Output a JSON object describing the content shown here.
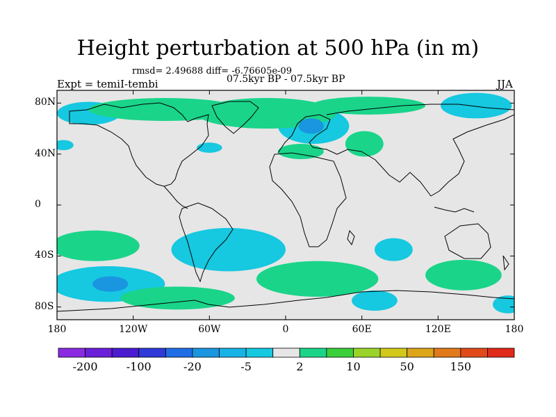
{
  "title": "Height perturbation at 500 hPa (in m)",
  "stats": "rmsd= 2.49688 diff= -6.76605e-09",
  "experiment": "Expt = temiI-tembi",
  "period": "07.5kyr BP - 07.5kyr BP",
  "season": "JJA",
  "map": {
    "lon_range": [
      -180,
      180
    ],
    "lat_range": [
      -90,
      90
    ],
    "y_ticks": [
      {
        "label": "80N",
        "lat": 80
      },
      {
        "label": "40N",
        "lat": 40
      },
      {
        "label": "0",
        "lat": 0
      },
      {
        "label": "40S",
        "lat": -40
      },
      {
        "label": "80S",
        "lat": -80
      }
    ],
    "x_ticks": [
      {
        "label": "180",
        "lon": -180
      },
      {
        "label": "120W",
        "lon": -120
      },
      {
        "label": "60W",
        "lon": -60
      },
      {
        "label": "0",
        "lon": 0
      },
      {
        "label": "60E",
        "lon": 60
      },
      {
        "label": "120E",
        "lon": 120
      },
      {
        "label": "180",
        "lon": 180
      }
    ],
    "background_color": "#e6e6e6"
  },
  "colorbar": {
    "colors": [
      "#8a2be2",
      "#6a1fd8",
      "#4b1cd0",
      "#2f3ad8",
      "#1f6ee6",
      "#1a95e0",
      "#19b2e6",
      "#16c8e0",
      "#e6e6e6",
      "#1ad48a",
      "#3ccf3c",
      "#9ad42a",
      "#d2c81a",
      "#dca51a",
      "#e07a1a",
      "#e04a1a",
      "#e02a1a"
    ],
    "labels": [
      {
        "text": "-200",
        "boundary": 1
      },
      {
        "text": "-100",
        "boundary": 3
      },
      {
        "text": "-20",
        "boundary": 5
      },
      {
        "text": "-5",
        "boundary": 7
      },
      {
        "text": "2",
        "boundary": 9
      },
      {
        "text": "10",
        "boundary": 11
      },
      {
        "text": "50",
        "boundary": 13
      },
      {
        "text": "150",
        "boundary": 15
      }
    ]
  },
  "anomaly_regions": [
    {
      "name": "arctic-america",
      "level": "green",
      "lon": -95,
      "lat": 75,
      "rx_deg": 60,
      "ry_deg": 9
    },
    {
      "name": "arctic-atlantic",
      "level": "green",
      "lon": -15,
      "lat": 72,
      "rx_deg": 55,
      "ry_deg": 12
    },
    {
      "name": "arctic-siberia",
      "level": "green",
      "lon": 65,
      "lat": 78,
      "rx_deg": 45,
      "ry_deg": 7
    },
    {
      "name": "north-pacific",
      "level": "blue",
      "lon": -155,
      "lat": 72,
      "rx_deg": 25,
      "ry_deg": 9
    },
    {
      "name": "bering",
      "level": "blue",
      "lon": 150,
      "lat": 78,
      "rx_deg": 28,
      "ry_deg": 10
    },
    {
      "name": "scandinavia",
      "level": "blue",
      "lon": 22,
      "lat": 62,
      "rx_deg": 28,
      "ry_deg": 14
    },
    {
      "name": "scandinavia-core",
      "level": "darkblue",
      "lon": 20,
      "lat": 62,
      "rx_deg": 10,
      "ry_deg": 6
    },
    {
      "name": "europe-ridge",
      "level": "green",
      "lon": 12,
      "lat": 42,
      "rx_deg": 18,
      "ry_deg": 6
    },
    {
      "name": "central-asia",
      "level": "green",
      "lon": 62,
      "lat": 48,
      "rx_deg": 15,
      "ry_deg": 10
    },
    {
      "name": "canada-east",
      "level": "blue",
      "lon": -60,
      "lat": 45,
      "rx_deg": 10,
      "ry_deg": 4
    },
    {
      "name": "atlantic-west",
      "level": "blue",
      "lon": -175,
      "lat": 47,
      "rx_deg": 8,
      "ry_deg": 4
    },
    {
      "name": "south-pacific-green",
      "level": "green",
      "lon": -150,
      "lat": -32,
      "rx_deg": 35,
      "ry_deg": 12
    },
    {
      "name": "south-america-blue",
      "level": "blue",
      "lon": -45,
      "lat": -35,
      "rx_deg": 45,
      "ry_deg": 17
    },
    {
      "name": "south-pacific-blue",
      "level": "blue",
      "lon": -140,
      "lat": -62,
      "rx_deg": 45,
      "ry_deg": 14
    },
    {
      "name": "south-pacific-core",
      "level": "darkblue",
      "lon": -138,
      "lat": -62,
      "rx_deg": 14,
      "ry_deg": 6
    },
    {
      "name": "south-atlantic-green",
      "level": "green",
      "lon": 25,
      "lat": -58,
      "rx_deg": 48,
      "ry_deg": 14
    },
    {
      "name": "indian-blue",
      "level": "blue",
      "lon": 85,
      "lat": -35,
      "rx_deg": 15,
      "ry_deg": 9
    },
    {
      "name": "australia-green",
      "level": "green",
      "lon": 140,
      "lat": -55,
      "rx_deg": 30,
      "ry_deg": 12
    },
    {
      "name": "antarctic-green",
      "level": "green",
      "lon": -85,
      "lat": -73,
      "rx_deg": 45,
      "ry_deg": 9
    },
    {
      "name": "antarctic-blue",
      "level": "blue",
      "lon": 70,
      "lat": -75,
      "rx_deg": 18,
      "ry_deg": 8
    },
    {
      "name": "nz-blue",
      "level": "blue",
      "lon": 175,
      "lat": -78,
      "rx_deg": 12,
      "ry_deg": 7
    }
  ]
}
